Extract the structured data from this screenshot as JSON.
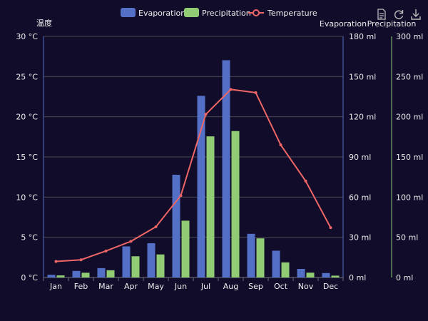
{
  "colors": {
    "background": "#100c2a",
    "evaporation": "#5470c6",
    "precipitation": "#91cc75",
    "temperature": "#ee6666",
    "text": "#eeeeee",
    "grid": "#484753"
  },
  "toolbox": {
    "icons": [
      "data-view-icon",
      "restore-icon",
      "save-image-icon"
    ]
  },
  "chart_data": {
    "type": "bar",
    "categories": [
      "Jan",
      "Feb",
      "Mar",
      "Apr",
      "May",
      "Jun",
      "Jul",
      "Aug",
      "Sep",
      "Oct",
      "Nov",
      "Dec"
    ],
    "series": [
      {
        "name": "Evaporation",
        "type": "bar",
        "axis": "Evaporation",
        "values": [
          2.0,
          4.9,
          7.0,
          23.2,
          25.6,
          76.7,
          135.6,
          162.2,
          32.6,
          20.0,
          6.4,
          3.3
        ]
      },
      {
        "name": "Precipitation",
        "type": "bar",
        "axis": "Precipitation",
        "values": [
          2.6,
          5.9,
          9.0,
          26.4,
          28.7,
          70.7,
          175.6,
          182.2,
          48.7,
          18.8,
          6.0,
          2.3
        ]
      },
      {
        "name": "Temperature",
        "type": "line",
        "axis": "温度",
        "values": [
          2.0,
          2.2,
          3.3,
          4.5,
          6.3,
          10.2,
          20.3,
          23.4,
          23.0,
          16.5,
          12.0,
          6.2
        ]
      }
    ],
    "axes": [
      {
        "name": "温度",
        "position": "left",
        "min": 0,
        "max": 30,
        "unit": "°C",
        "ticks": [
          "0 °C",
          "5 °C",
          "10 °C",
          "15 °C",
          "20 °C",
          "25 °C",
          "30 °C"
        ]
      },
      {
        "name": "Evaporation",
        "position": "right",
        "min": 0,
        "max": 180,
        "unit": "ml",
        "ticks": [
          "0 ml",
          "30 ml",
          "60 ml",
          "90 ml",
          "120 ml",
          "150 ml",
          "180 ml"
        ]
      },
      {
        "name": "Precipitation",
        "position": "right-outer",
        "min": 0,
        "max": 300,
        "unit": "ml",
        "ticks": [
          "0 ml",
          "50 ml",
          "100 ml",
          "150 ml",
          "200 ml",
          "250 ml",
          "300 ml"
        ]
      }
    ],
    "legend": [
      "Evaporation",
      "Precipitation",
      "Temperature"
    ],
    "legend_position": "top-center",
    "grid": true
  }
}
